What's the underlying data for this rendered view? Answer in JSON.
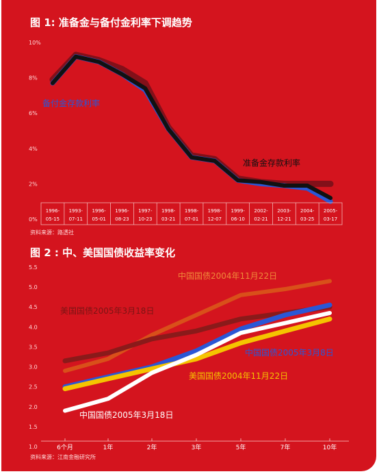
{
  "chart_data": [
    {
      "type": "line",
      "title": "图 1: 准备金与备付金利率下调趋势",
      "y_ticks": [
        "0%",
        "2%",
        "4%",
        "6%",
        "8%",
        "10%"
      ],
      "ylim": [
        0,
        10
      ],
      "categories": [
        "1996-05-15",
        "1993-07-11",
        "1996-05-01",
        "1996-08-23",
        "1997-10-23",
        "1998-03-21",
        "1998-07-01",
        "1998-12-07",
        "1999-06-10",
        "2002-02-21",
        "2003-12-21",
        "2004-03-25",
        "2005-03-17"
      ],
      "category_lines": [
        [
          "1996-",
          "05-15"
        ],
        [
          "1993-",
          "07-11"
        ],
        [
          "1996-",
          "05-01"
        ],
        [
          "1996-",
          "08-23"
        ],
        [
          "1997-",
          "10-23"
        ],
        [
          "1998-",
          "03-21"
        ],
        [
          "1998-",
          "07-01"
        ],
        [
          "1998-",
          "12-07"
        ],
        [
          "1999-",
          "06-10"
        ],
        [
          "2002-",
          "02-21"
        ],
        [
          "2003-",
          "12-21"
        ],
        [
          "2004-",
          "03-25"
        ],
        [
          "2005-",
          "03-17"
        ]
      ],
      "series": [
        {
          "name": "备付金存款利率",
          "color": "#2a57d6",
          "values": [
            7.7,
            9.2,
            8.9,
            8.2,
            7.3,
            5.1,
            3.5,
            3.3,
            2.2,
            2.0,
            1.9,
            1.75,
            1.0
          ]
        },
        {
          "name": "准备金存款利率",
          "color": "#111111",
          "values": [
            7.7,
            9.2,
            8.9,
            8.2,
            7.4,
            5.1,
            3.5,
            3.3,
            2.2,
            2.1,
            1.9,
            1.9,
            1.2
          ]
        }
      ],
      "shadow_series": {
        "color": "#7a1018",
        "values": [
          7.9,
          9.3,
          9.0,
          8.5,
          7.7,
          5.2,
          3.6,
          3.4,
          2.3,
          2.1,
          2.0,
          2.0,
          2.0
        ]
      },
      "source": "资料来源：路透社"
    },
    {
      "type": "line",
      "title": "图 2 : 中、美国国债收益率变化",
      "y_ticks": [
        "1.0",
        "1.5",
        "2.0",
        "2.5",
        "3.0",
        "3.5",
        "4.0",
        "4.5",
        "5.0",
        "5.5"
      ],
      "ylim": [
        1.0,
        5.5
      ],
      "categories": [
        "6个月",
        "1年",
        "2年",
        "3年",
        "5年",
        "7年",
        "10年"
      ],
      "series": [
        {
          "name": "中国国债2004年11月22日",
          "color": "#d9501a",
          "values": [
            2.9,
            3.2,
            3.8,
            4.3,
            4.8,
            4.95,
            5.15
          ]
        },
        {
          "name": "美国国债2005年3月18日",
          "color": "#8a1a1a",
          "values": [
            3.15,
            3.35,
            3.7,
            3.9,
            4.2,
            4.35,
            4.5
          ]
        },
        {
          "name": "中国国债2005年3月8日",
          "color": "#2a57d6",
          "values": [
            2.5,
            2.75,
            3.0,
            3.4,
            3.95,
            4.3,
            4.55
          ]
        },
        {
          "name": "美国国债2004年11月22日",
          "color": "#f5c400",
          "values": [
            2.45,
            2.7,
            2.95,
            3.2,
            3.6,
            3.9,
            4.2
          ]
        },
        {
          "name": "中国国债2005年3月18日",
          "color": "#ffffff",
          "values": [
            1.9,
            2.2,
            2.85,
            3.3,
            3.85,
            4.1,
            4.35
          ]
        }
      ],
      "source": "资料来源：江南金融研究所"
    }
  ]
}
